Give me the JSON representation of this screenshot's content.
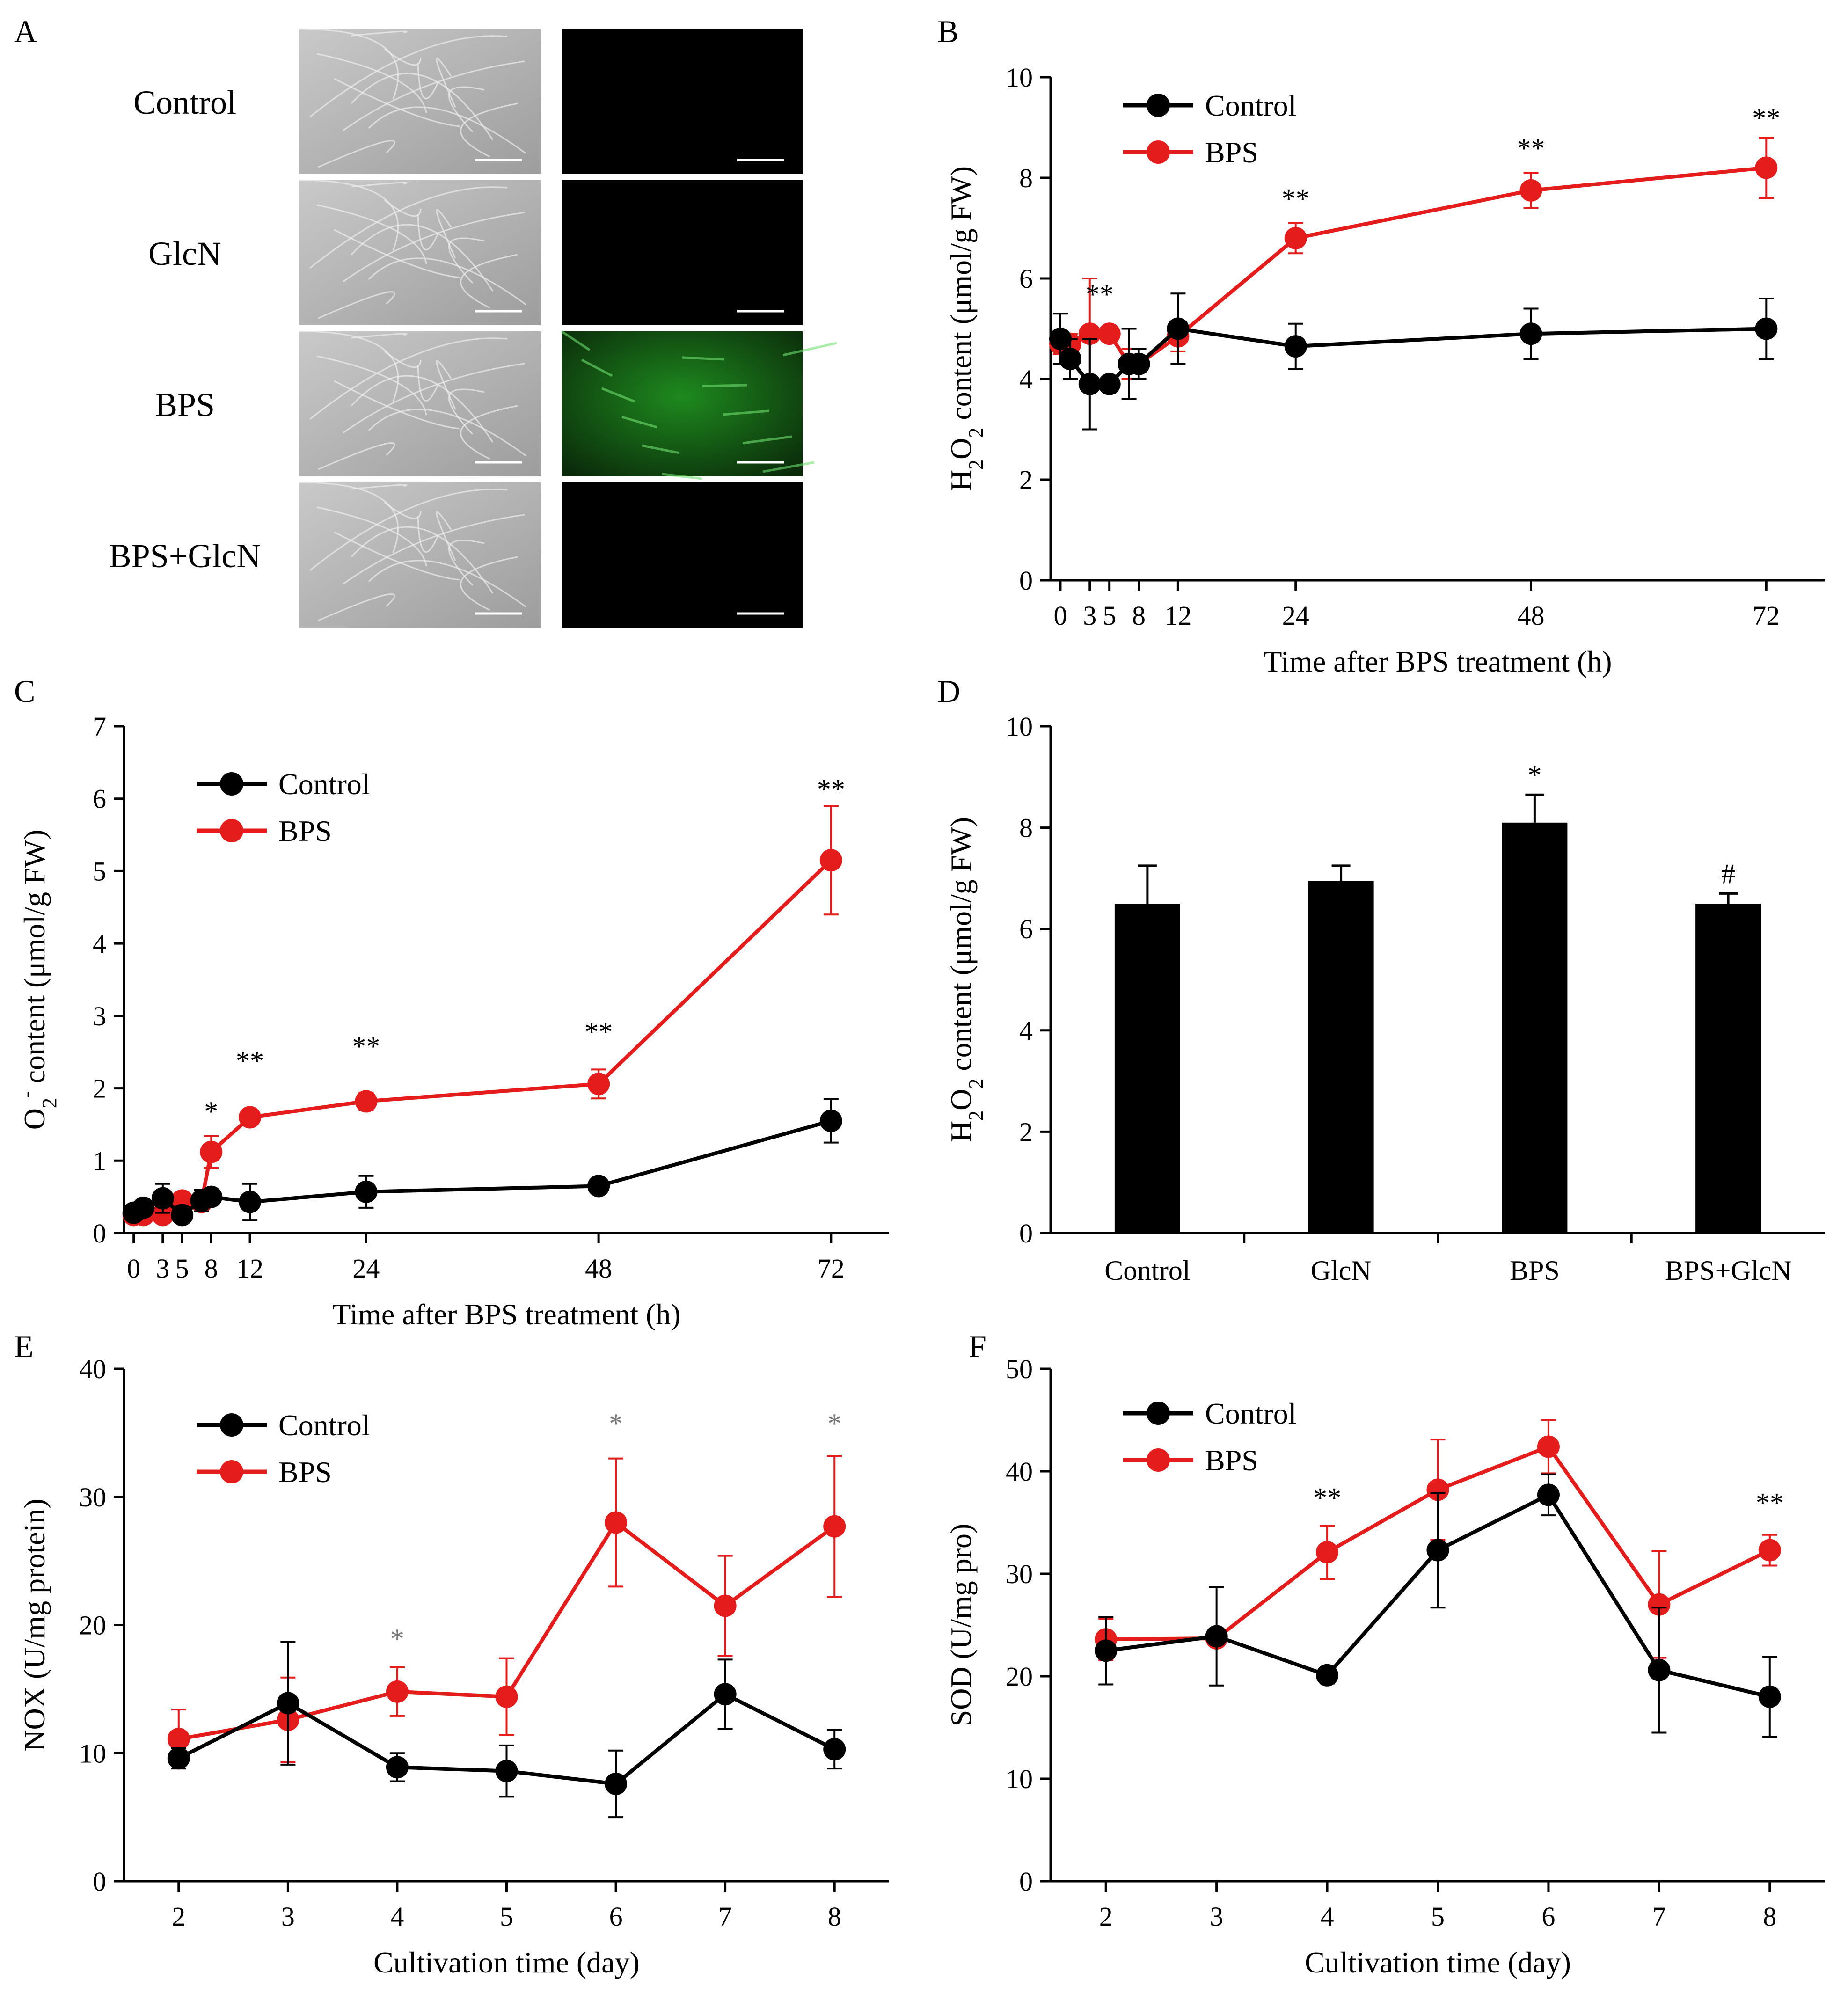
{
  "colors": {
    "control": "#000000",
    "bps": "#e41c1c",
    "sig_grey": "#777777",
    "green": "#1e8a1e"
  },
  "panel_a": {
    "letter": "A",
    "rows": [
      {
        "label": "Control",
        "fluorescent": false
      },
      {
        "label": "GlcN",
        "fluorescent": false
      },
      {
        "label": "BPS",
        "fluorescent": true
      },
      {
        "label": "BPS+GlcN",
        "fluorescent": false
      }
    ]
  },
  "chart_data": [
    {
      "panel": "B",
      "type": "line",
      "ylabel": "H2O2 content (μmol/g FW)",
      "xlabel": "Time  after BPS treatment (h)",
      "ylim": [
        0,
        10
      ],
      "yticks": [
        0,
        2,
        4,
        6,
        8,
        10
      ],
      "xlim": [
        -1,
        78
      ],
      "xticks": [
        0,
        3,
        5,
        8,
        12,
        24,
        48,
        72
      ],
      "x": [
        0,
        1,
        3,
        5,
        7,
        8,
        12,
        24,
        48,
        72
      ],
      "series": [
        {
          "name": "Control",
          "values": [
            4.8,
            4.4,
            3.9,
            3.9,
            4.3,
            4.3,
            5.0,
            4.65,
            4.9,
            5.0
          ],
          "errors": [
            0.5,
            0.4,
            0.9,
            0.0,
            0.7,
            0.3,
            0.7,
            0.45,
            0.5,
            0.6
          ]
        },
        {
          "name": "BPS",
          "values": [
            4.7,
            4.7,
            4.9,
            4.9,
            4.3,
            4.3,
            4.85,
            6.8,
            7.75,
            8.2
          ],
          "errors": [
            0.2,
            0.2,
            1.1,
            0.0,
            0.3,
            0.3,
            0.3,
            0.3,
            0.35,
            0.6
          ]
        }
      ],
      "annotations": [
        {
          "x": 4,
          "y": 5.5,
          "text": "**"
        },
        {
          "x": 24,
          "y": 7.4,
          "text": "**"
        },
        {
          "x": 48,
          "y": 8.4,
          "text": "**"
        },
        {
          "x": 72,
          "y": 9.0,
          "text": "**"
        }
      ]
    },
    {
      "panel": "C",
      "type": "line",
      "ylabel": "O2- content (μmol/g FW)",
      "xlabel": "Time after BPS treatment (h)",
      "ylim": [
        0,
        7
      ],
      "yticks": [
        0,
        1,
        2,
        3,
        4,
        5,
        6,
        7
      ],
      "xlim": [
        -1,
        78
      ],
      "xticks": [
        0,
        3,
        5,
        8,
        12,
        24,
        48,
        72
      ],
      "x": [
        0,
        1,
        3,
        5,
        7,
        8,
        12,
        24,
        48,
        72
      ],
      "series": [
        {
          "name": "Control",
          "values": [
            0.28,
            0.35,
            0.48,
            0.25,
            0.45,
            0.5,
            0.43,
            0.57,
            0.65,
            1.55
          ],
          "errors": [
            0.05,
            0.05,
            0.2,
            0.05,
            0.15,
            0.1,
            0.25,
            0.22,
            0.05,
            0.3
          ]
        },
        {
          "name": "BPS",
          "values": [
            0.25,
            0.25,
            0.25,
            0.45,
            0.43,
            1.12,
            1.6,
            1.82,
            2.06,
            5.15
          ],
          "errors": [
            0.05,
            0.05,
            0.05,
            0.05,
            0.1,
            0.22,
            0.05,
            0.12,
            0.2,
            0.75
          ]
        }
      ],
      "annotations": [
        {
          "x": 8,
          "y": 1.55,
          "text": "*"
        },
        {
          "x": 12,
          "y": 2.25,
          "text": "**"
        },
        {
          "x": 24,
          "y": 2.45,
          "text": "**"
        },
        {
          "x": 48,
          "y": 2.65,
          "text": "**"
        },
        {
          "x": 72,
          "y": 6.0,
          "text": "**"
        }
      ]
    },
    {
      "panel": "D",
      "type": "bar",
      "ylabel": "H2O2 content (μmol/g FW)",
      "ylim": [
        0,
        10
      ],
      "yticks": [
        0,
        2,
        4,
        6,
        8,
        10
      ],
      "categories": [
        "Control",
        "GlcN",
        "BPS",
        "BPS+GlcN"
      ],
      "values": [
        6.5,
        6.95,
        8.1,
        6.5
      ],
      "errors": [
        0.75,
        0.3,
        0.55,
        0.2
      ],
      "annotations": [
        {
          "index": 2,
          "y": 8.85,
          "text": "*"
        },
        {
          "index": 3,
          "y": 6.9,
          "text": "#"
        }
      ]
    },
    {
      "panel": "E",
      "type": "line",
      "ylabel": "NOX (U/mg protein)",
      "xlabel": "Cultivation time (day)",
      "ylim": [
        0,
        40
      ],
      "yticks": [
        0,
        10,
        20,
        30,
        40
      ],
      "xlim": [
        1.5,
        8.5
      ],
      "xticks": [
        2,
        3,
        4,
        5,
        6,
        7,
        8
      ],
      "x": [
        2,
        3,
        4,
        5,
        6,
        7,
        8
      ],
      "series": [
        {
          "name": "Control",
          "values": [
            9.6,
            13.9,
            8.9,
            8.6,
            7.6,
            14.6,
            10.3
          ],
          "errors": [
            0.8,
            4.8,
            1.1,
            2.0,
            2.6,
            2.7,
            1.5
          ]
        },
        {
          "name": "BPS",
          "values": [
            11.1,
            12.6,
            14.8,
            14.4,
            28.0,
            21.5,
            27.7
          ],
          "errors": [
            2.3,
            3.3,
            1.9,
            3.0,
            5.0,
            3.9,
            5.5
          ]
        }
      ],
      "annotations": [
        {
          "x": 4,
          "y": 18.2,
          "text": "*",
          "grey": true
        },
        {
          "x": 6,
          "y": 35.0,
          "text": "*",
          "grey": true
        },
        {
          "x": 8,
          "y": 35.0,
          "text": "*",
          "grey": true
        }
      ]
    },
    {
      "panel": "F",
      "type": "line",
      "ylabel": "SOD (U/mg pro)",
      "xlabel": "Cultivation time (day)",
      "ylim": [
        0,
        50
      ],
      "yticks": [
        0,
        10,
        20,
        30,
        40,
        50
      ],
      "xlim": [
        1.5,
        8.5
      ],
      "xticks": [
        2,
        3,
        4,
        5,
        6,
        7,
        8
      ],
      "x": [
        2,
        3,
        4,
        5,
        6,
        7,
        8
      ],
      "series": [
        {
          "name": "Control",
          "values": [
            22.5,
            23.9,
            20.1,
            32.3,
            37.7,
            20.6,
            18.0
          ],
          "errors": [
            3.3,
            4.8,
            0.8,
            5.6,
            2.0,
            6.1,
            3.9
          ]
        },
        {
          "name": "BPS",
          "values": [
            23.6,
            23.7,
            32.1,
            38.2,
            42.4,
            27.0,
            32.3
          ],
          "errors": [
            2.0,
            0.4,
            2.6,
            4.9,
            2.6,
            5.2,
            1.5
          ]
        }
      ],
      "annotations": [
        {
          "x": 4,
          "y": 36.5,
          "text": "**"
        },
        {
          "x": 8,
          "y": 36.0,
          "text": "**"
        }
      ]
    }
  ]
}
